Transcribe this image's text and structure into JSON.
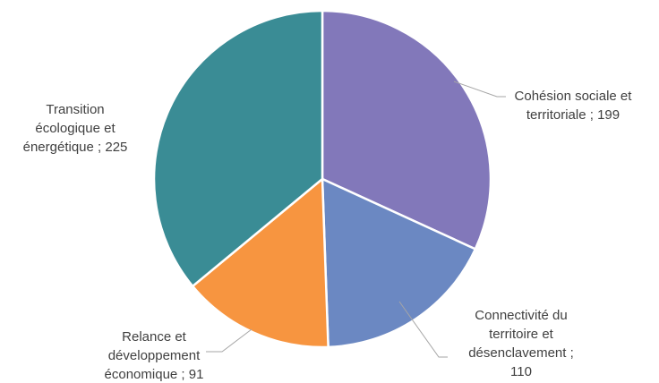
{
  "chart_data": {
    "type": "pie",
    "title": "",
    "slices": [
      {
        "name": "Cohésion sociale et territoriale",
        "value": 199,
        "color": "#8278ba",
        "label_lines": [
          "Cohésion sociale et",
          "territoriale ; 199"
        ]
      },
      {
        "name": "Connectivité du territoire et désenclavement",
        "value": 110,
        "color": "#6b88c2",
        "label_lines": [
          "Connectivité du",
          "territoire et",
          "désenclavement ;",
          "110"
        ]
      },
      {
        "name": "Relance et développement économique",
        "value": 91,
        "color": "#f79540",
        "label_lines": [
          "Relance et",
          "développement",
          "économique ; 91"
        ]
      },
      {
        "name": "Transition écologique et énergétique",
        "value": 225,
        "color": "#3a8c95",
        "label_lines": [
          "Transition",
          "écologique et",
          "énergétique  ; 225"
        ]
      }
    ],
    "start_angle": "12 o'clock",
    "direction": "clockwise",
    "legend": "none"
  }
}
